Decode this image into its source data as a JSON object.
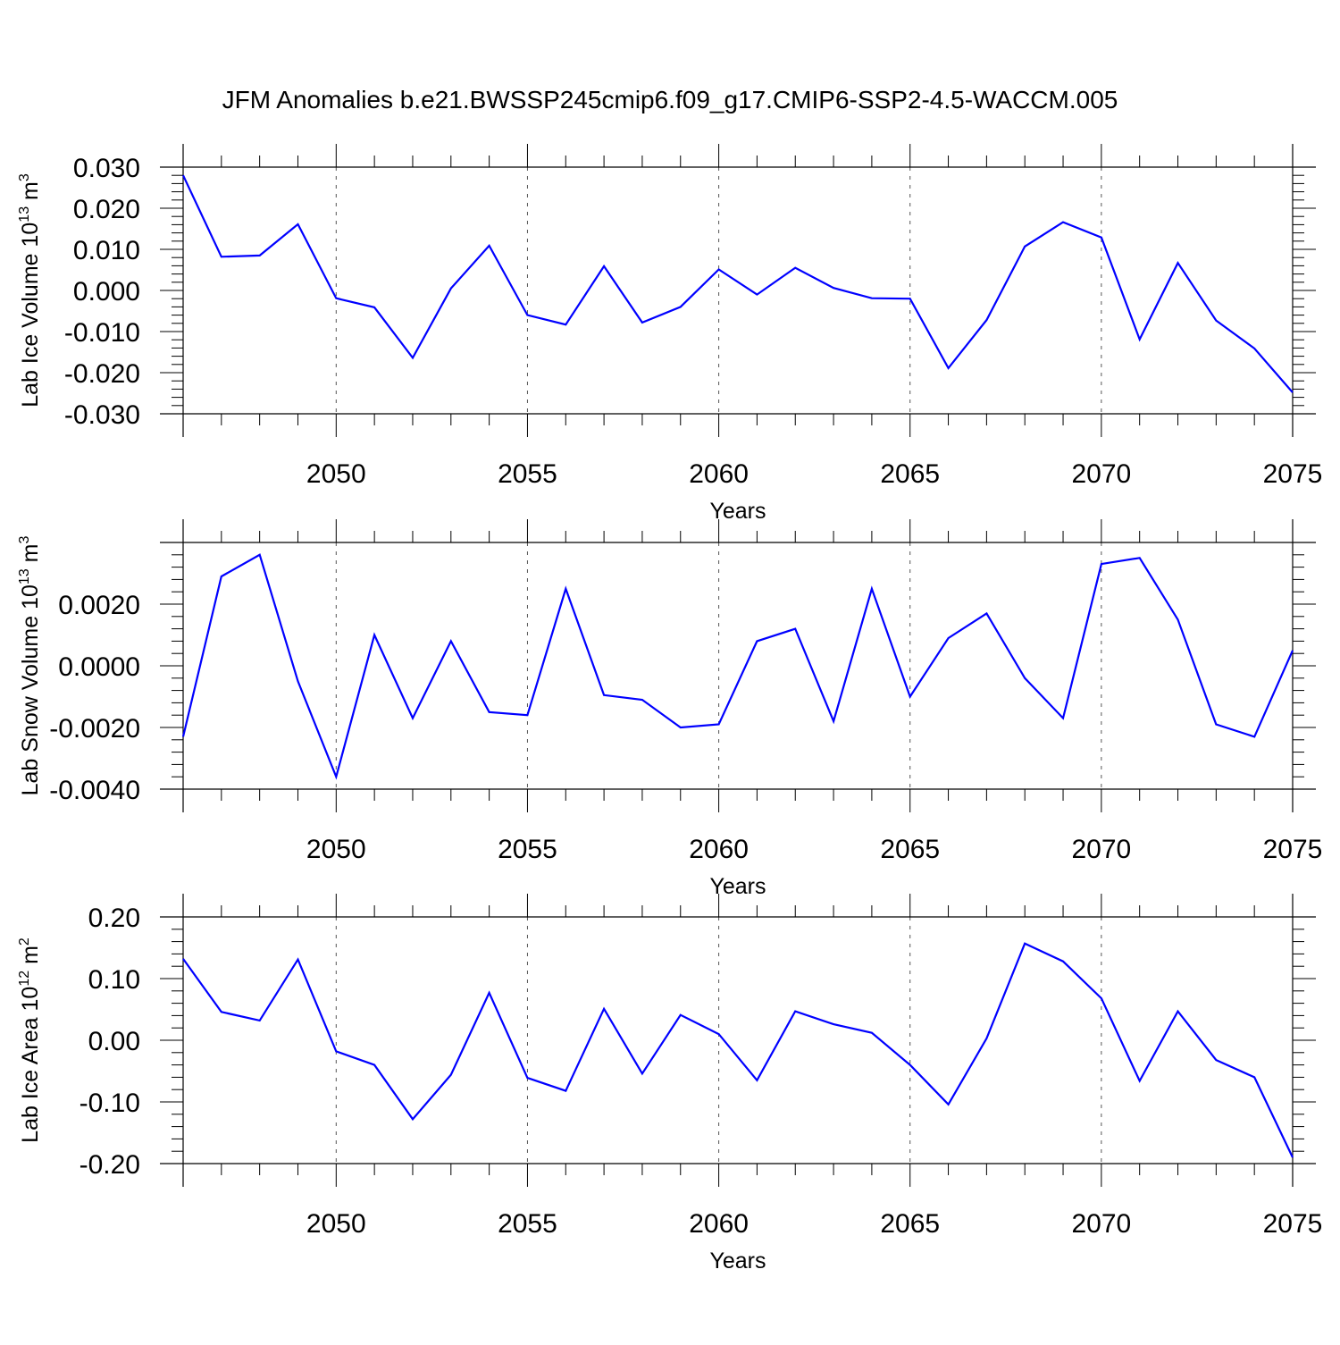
{
  "title": "JFM Anomalies b.e21.BWSSP245cmip6.f09_g17.CMIP6-SSP2-4.5-WACCM.005",
  "colors": {
    "line": "#0000ff",
    "axis": "#000000",
    "grid": "#555555"
  },
  "chart_data": [
    {
      "type": "line",
      "id": "ice-volume",
      "ylabel_main": "Lab Ice Volume 10",
      "ylabel_exp": "13",
      "ylabel_unit": " m",
      "ylabel_unit_exp": "3",
      "xlabel": "Years",
      "xlim": [
        2046,
        2075
      ],
      "ylim": [
        -0.03,
        0.03
      ],
      "xticks": [
        2050,
        2055,
        2060,
        2065,
        2070,
        2075
      ],
      "xtick_labels": [
        "2050",
        "2055",
        "2060",
        "2065",
        "2070",
        "2075"
      ],
      "yticks": [
        -0.03,
        -0.02,
        -0.01,
        0.0,
        0.01,
        0.02,
        0.03
      ],
      "ytick_labels": [
        "-0.030",
        "-0.020",
        "-0.010",
        "0.000",
        "0.010",
        "0.020",
        "0.030"
      ],
      "yminor_step": 0.002,
      "x": [
        2046,
        2047,
        2048,
        2049,
        2050,
        2051,
        2052,
        2053,
        2054,
        2055,
        2056,
        2057,
        2058,
        2059,
        2060,
        2061,
        2062,
        2063,
        2064,
        2065,
        2066,
        2067,
        2068,
        2069,
        2070,
        2071,
        2072,
        2073,
        2074,
        2075
      ],
      "y": [
        0.028,
        0.0082,
        0.0085,
        0.0161,
        -0.0019,
        -0.0041,
        -0.0164,
        0.0005,
        0.0109,
        -0.006,
        -0.0083,
        0.0059,
        -0.0078,
        -0.004,
        0.0051,
        -0.001,
        0.0055,
        0.0006,
        -0.0019,
        -0.002,
        -0.0189,
        -0.0072,
        0.0107,
        0.0166,
        0.0129,
        -0.0119,
        0.0067,
        -0.0073,
        -0.0141,
        -0.0248
      ]
    },
    {
      "type": "line",
      "id": "snow-volume",
      "ylabel_main": "Lab Snow Volume 10",
      "ylabel_exp": "13",
      "ylabel_unit": " m",
      "ylabel_unit_exp": "3",
      "xlabel": "Years",
      "xlim": [
        2046,
        2075
      ],
      "ylim": [
        -0.004,
        0.004
      ],
      "xticks": [
        2050,
        2055,
        2060,
        2065,
        2070,
        2075
      ],
      "xtick_labels": [
        "2050",
        "2055",
        "2060",
        "2065",
        "2070",
        "2075"
      ],
      "yticks": [
        -0.004,
        -0.002,
        0.0,
        0.002
      ],
      "ytick_labels": [
        "-0.0040",
        "-0.0020",
        "0.0000",
        "0.0020"
      ],
      "yminor_step": 0.0004,
      "x": [
        2046,
        2047,
        2048,
        2049,
        2050,
        2051,
        2052,
        2053,
        2054,
        2055,
        2056,
        2057,
        2058,
        2059,
        2060,
        2061,
        2062,
        2063,
        2064,
        2065,
        2066,
        2067,
        2068,
        2069,
        2070,
        2071,
        2072,
        2073,
        2074,
        2075
      ],
      "y": [
        -0.0023,
        0.0029,
        0.0036,
        -0.0005,
        -0.0036,
        0.001,
        -0.0017,
        0.0008,
        -0.0015,
        -0.0016,
        0.0025,
        -0.00095,
        -0.0011,
        -0.002,
        -0.0019,
        0.0008,
        0.0012,
        -0.0018,
        0.0025,
        -0.001,
        0.0009,
        0.0017,
        -0.0004,
        -0.0017,
        0.0033,
        0.0035,
        0.0015,
        -0.0019,
        -0.0023,
        0.0005
      ]
    },
    {
      "type": "line",
      "id": "ice-area",
      "ylabel_main": "Lab Ice Area 10",
      "ylabel_exp": "12",
      "ylabel_unit": " m",
      "ylabel_unit_exp": "2",
      "xlabel": "Years",
      "xlim": [
        2046,
        2075
      ],
      "ylim": [
        -0.2,
        0.2
      ],
      "xticks": [
        2050,
        2055,
        2060,
        2065,
        2070,
        2075
      ],
      "xtick_labels": [
        "2050",
        "2055",
        "2060",
        "2065",
        "2070",
        "2075"
      ],
      "yticks": [
        -0.2,
        -0.1,
        0.0,
        0.1,
        0.2
      ],
      "ytick_labels": [
        "-0.20",
        "-0.10",
        "0.00",
        "0.10",
        "0.20"
      ],
      "yminor_step": 0.02,
      "x": [
        2046,
        2047,
        2048,
        2049,
        2050,
        2051,
        2052,
        2053,
        2054,
        2055,
        2056,
        2057,
        2058,
        2059,
        2060,
        2061,
        2062,
        2063,
        2064,
        2065,
        2066,
        2067,
        2068,
        2069,
        2070,
        2071,
        2072,
        2073,
        2074,
        2075
      ],
      "y": [
        0.132,
        0.046,
        0.032,
        0.131,
        -0.018,
        -0.04,
        -0.128,
        -0.056,
        0.077,
        -0.061,
        -0.082,
        0.051,
        -0.054,
        0.041,
        0.01,
        -0.065,
        0.047,
        0.026,
        0.012,
        -0.04,
        -0.104,
        0.003,
        0.157,
        0.128,
        0.068,
        -0.066,
        0.047,
        -0.032,
        -0.06,
        -0.19
      ]
    }
  ]
}
